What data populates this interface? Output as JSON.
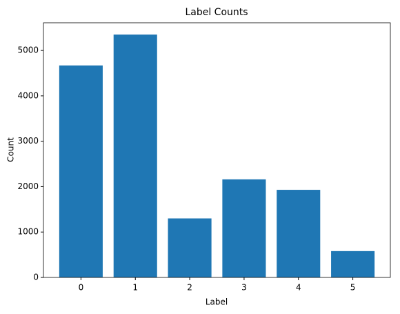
{
  "chart_data": {
    "type": "bar",
    "title": "Label Counts",
    "x_label": "Label",
    "y_label": "Count",
    "x": [
      0,
      1,
      2,
      3,
      4,
      5
    ],
    "values": [
      4670,
      5350,
      1300,
      2160,
      1930,
      580
    ],
    "color": "#1f77b4",
    "xlim": [
      -0.69,
      5.69
    ],
    "xticks": [
      0,
      1,
      2,
      3,
      4,
      5
    ],
    "ylim": [
      0,
      5610
    ],
    "yticks": [
      0,
      1000,
      2000,
      3000,
      4000,
      5000
    ],
    "grid": false
  }
}
